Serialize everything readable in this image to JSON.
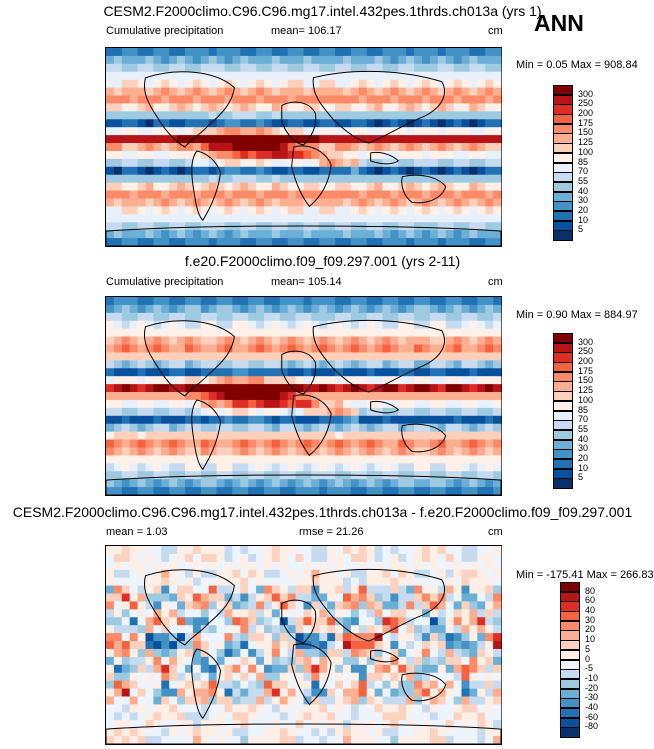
{
  "season": "ANN",
  "colors": {
    "pos": [
      "#fee5d9",
      "#fcbba1",
      "#fc9272",
      "#fb6a4a",
      "#ef3b2c",
      "#cb181d",
      "#a50f15",
      "#67000d"
    ],
    "neg": [
      "#f2f6ff",
      "#c6dbef",
      "#9ecae1",
      "#6baed6",
      "#4292c6",
      "#2171b5",
      "#08519c",
      "#08306b"
    ],
    "coast": "#000000"
  },
  "panels": [
    {
      "title": "CESM2.F2000climo.C96.C96.mg17.intel.432pes.1thrds.ch013a (yrs 1)",
      "variable": "Cumulative precipitation",
      "mean_label": "mean= 106.17",
      "units": "cm",
      "minmax": "Min =   0.05 Max = 908.84"
    },
    {
      "title": "f.e20.F2000climo.f09_f09.297.001 (yrs 2-11)",
      "variable": "Cumulative precipitation",
      "mean_label": "mean= 105.14",
      "units": "cm",
      "minmax": "Min =   0.90 Max = 884.97"
    },
    {
      "title": "CESM2.F2000climo.C96.C96.mg17.intel.432pes.1thrds.ch013a - f.e20.F2000climo.f09_f09.297.001",
      "mean_label": "mean =    1.03",
      "rmse_label": "rmse =   21.26",
      "units": "cm",
      "minmax": "Min = -175.41 Max = 266.83"
    }
  ],
  "chart_data": [
    {
      "type": "heatmap",
      "title": "CESM2.F2000climo.C96.C96.mg17.intel.432pes.1thrds.ch013a (yrs 1)",
      "variable": "Cumulative precipitation",
      "units": "cm",
      "mean": 106.17,
      "min": 0.05,
      "max": 908.84,
      "colorbar_levels": [
        5,
        10,
        20,
        30,
        40,
        55,
        70,
        85,
        100,
        125,
        150,
        175,
        200,
        250,
        300
      ],
      "colorbar_labels": [
        "5",
        "10",
        "20",
        "30",
        "40",
        "55",
        "70",
        "85",
        "100",
        "125",
        "150",
        "175",
        "200",
        "250",
        "300"
      ]
    },
    {
      "type": "heatmap",
      "title": "f.e20.F2000climo.f09_f09.297.001 (yrs 2-11)",
      "variable": "Cumulative precipitation",
      "units": "cm",
      "mean": 105.14,
      "min": 0.9,
      "max": 884.97,
      "colorbar_levels": [
        5,
        10,
        20,
        30,
        40,
        55,
        70,
        85,
        100,
        125,
        150,
        175,
        200,
        250,
        300
      ],
      "colorbar_labels": [
        "5",
        "10",
        "20",
        "30",
        "40",
        "55",
        "70",
        "85",
        "100",
        "125",
        "150",
        "175",
        "200",
        "250",
        "300"
      ]
    },
    {
      "type": "heatmap",
      "title": "CESM2.F2000climo.C96.C96.mg17.intel.432pes.1thrds.ch013a - f.e20.F2000climo.f09_f09.297.001",
      "units": "cm",
      "mean": 1.03,
      "rmse": 21.26,
      "min": -175.41,
      "max": 266.83,
      "colorbar_levels": [
        -80,
        -60,
        -40,
        -30,
        -20,
        -10,
        -5,
        0,
        5,
        10,
        20,
        30,
        40,
        60,
        80
      ],
      "colorbar_labels": [
        "-80",
        "-60",
        "-40",
        "-30",
        "-20",
        "-10",
        "-5",
        "0",
        "5",
        "10",
        "20",
        "30",
        "40",
        "60",
        "80"
      ]
    }
  ]
}
